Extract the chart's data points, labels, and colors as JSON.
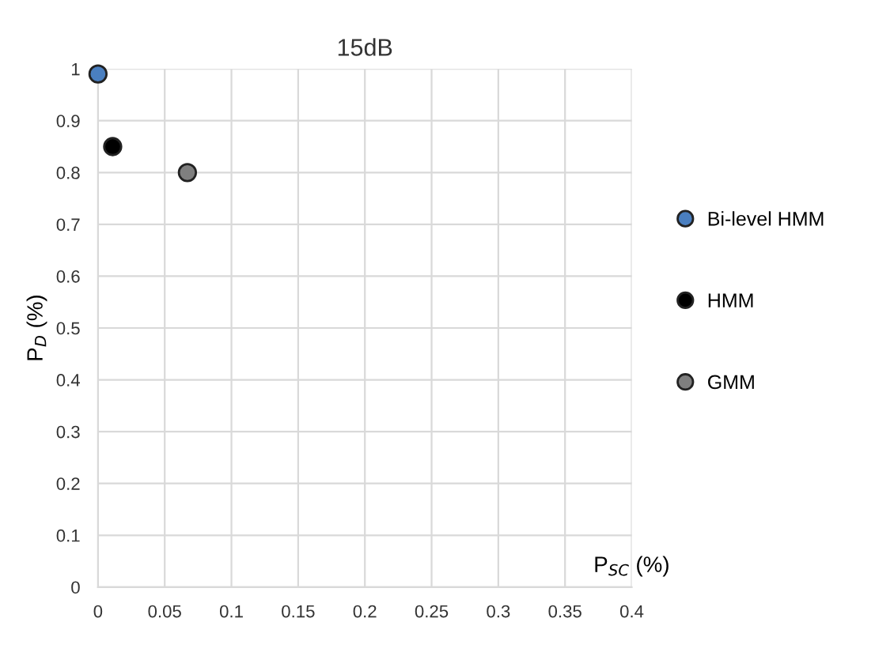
{
  "chart_data": {
    "type": "scatter",
    "title": "15dB",
    "xlabel": "P$_{SC}$ (%)",
    "ylabel": "P$_{D}$ (%)",
    "series": [
      {
        "name": "Bi-level HMM",
        "color": "#4a7fc0",
        "x": [
          0
        ],
        "values": [
          0.99
        ]
      },
      {
        "name": "HMM",
        "color": "#000000",
        "x": [
          0.011
        ],
        "values": [
          0.85
        ]
      },
      {
        "name": "GMM",
        "color": "#7f7f7f",
        "x": [
          0.067
        ],
        "values": [
          0.8
        ]
      }
    ],
    "xlim": [
      0,
      0.4
    ],
    "xticks": [
      0,
      0.05,
      0.1,
      0.15,
      0.2,
      0.25,
      0.3,
      0.35,
      0.4
    ],
    "ylim": [
      0,
      1
    ],
    "yticks": [
      0,
      0.1,
      0.2,
      0.3,
      0.4,
      0.5,
      0.6,
      0.7,
      0.8,
      0.9,
      1
    ],
    "grid": true,
    "legend": "right",
    "marker": "circle"
  }
}
